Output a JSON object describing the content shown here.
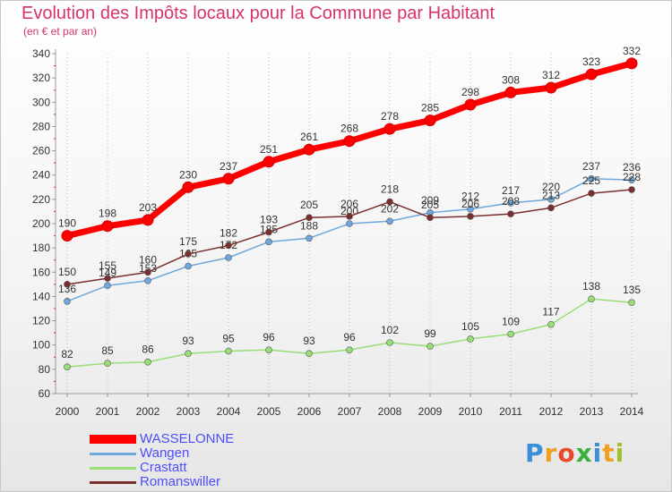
{
  "chart_data": {
    "type": "line",
    "title": "Evolution des Impôts locaux pour la Commune par Habitant",
    "subtitle": "(en € et par an)",
    "x": [
      2000,
      2001,
      2002,
      2003,
      2004,
      2005,
      2006,
      2007,
      2008,
      2009,
      2010,
      2011,
      2012,
      2013,
      2014
    ],
    "ylim": [
      60,
      340
    ],
    "yticks": [
      60,
      80,
      100,
      120,
      140,
      160,
      180,
      200,
      220,
      240,
      260,
      280,
      300,
      320,
      340
    ],
    "grid": "vertical dotted",
    "legend_position": "bottom-left",
    "series": [
      {
        "name": "WASSELONNE",
        "color": "#ff0000",
        "values": [
          190,
          198,
          203,
          230,
          237,
          251,
          261,
          268,
          278,
          285,
          298,
          308,
          312,
          323,
          332
        ]
      },
      {
        "name": "Wangen",
        "color": "#6fa8dc",
        "values": [
          136,
          149,
          153,
          165,
          172,
          185,
          188,
          200,
          202,
          209,
          212,
          217,
          220,
          237,
          236
        ]
      },
      {
        "name": "Crastatt",
        "color": "#99dd77",
        "values": [
          82,
          85,
          86,
          93,
          95,
          96,
          93,
          96,
          102,
          99,
          105,
          109,
          117,
          138,
          135
        ]
      },
      {
        "name": "Romanswiller",
        "color": "#7a2e2e",
        "values": [
          150,
          155,
          160,
          175,
          182,
          193,
          205,
          206,
          218,
          205,
          206,
          208,
          213,
          225,
          228
        ]
      }
    ]
  },
  "logo": {
    "letters": [
      "P",
      "r",
      "o",
      "x",
      "i",
      "t",
      "i"
    ],
    "colors": [
      "#3b8fd6",
      "#f0a020",
      "#e84a2a",
      "#3ab03a",
      "#3b8fd6",
      "#f0a020",
      "#a0c030"
    ]
  }
}
